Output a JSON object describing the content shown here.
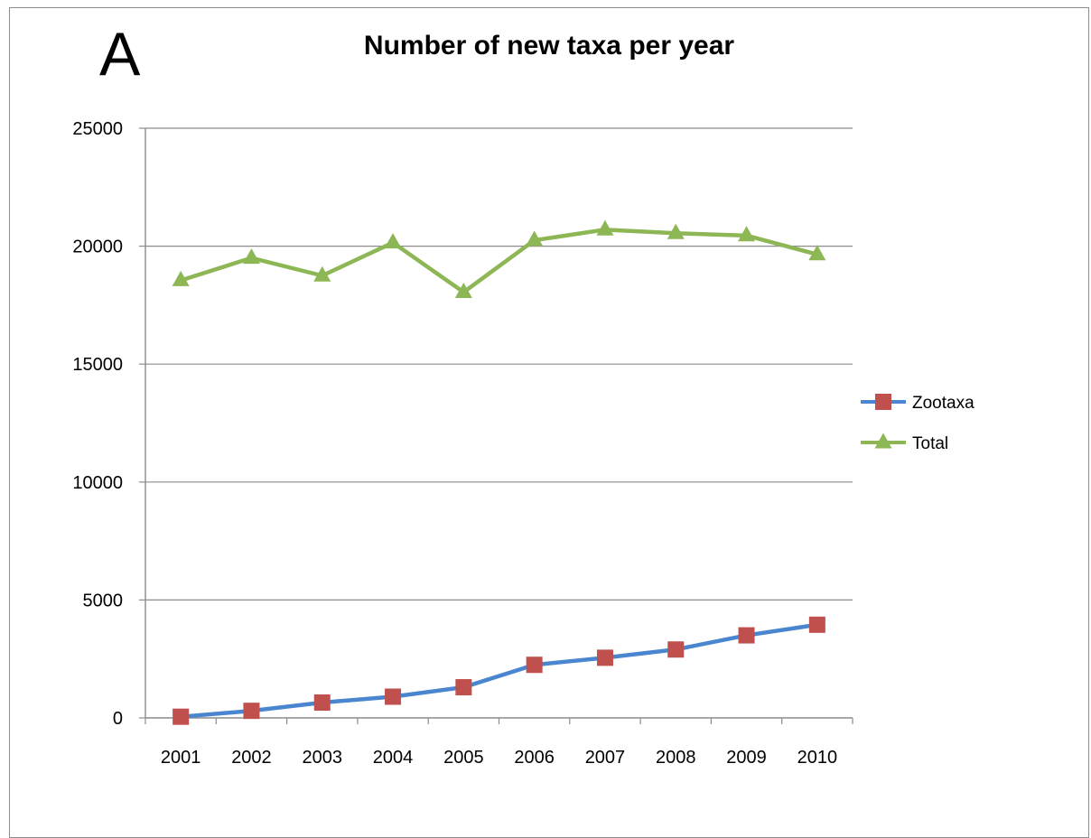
{
  "panel_label": "A",
  "chart_data": {
    "type": "line",
    "title": "Number of new taxa per year",
    "xlabel": "",
    "ylabel": "",
    "categories": [
      "2001",
      "2002",
      "2003",
      "2004",
      "2005",
      "2006",
      "2007",
      "2008",
      "2009",
      "2010"
    ],
    "ylim": [
      0,
      25000
    ],
    "yticks": [
      0,
      5000,
      10000,
      15000,
      20000,
      25000
    ],
    "grid": true,
    "legend_position": "right",
    "series": [
      {
        "name": "Zootaxa",
        "values": [
          50,
          300,
          650,
          900,
          1300,
          2250,
          2550,
          2900,
          3500,
          3950
        ],
        "line_color": "#4a86d0",
        "marker": "square",
        "marker_color": "#c0504d"
      },
      {
        "name": "Total",
        "values": [
          18550,
          19500,
          18750,
          20150,
          18050,
          20250,
          20700,
          20550,
          20450,
          19650
        ],
        "line_color": "#8db654",
        "marker": "triangle",
        "marker_color": "#8db654"
      }
    ]
  }
}
